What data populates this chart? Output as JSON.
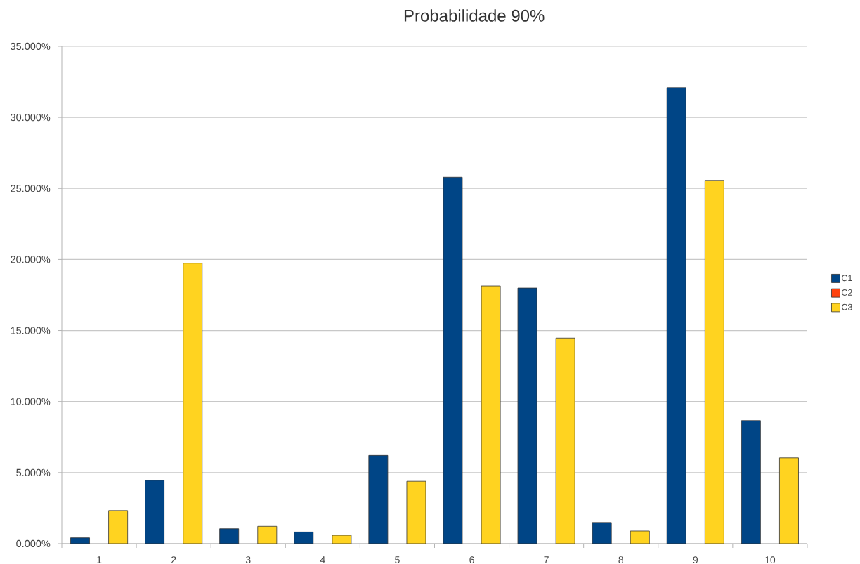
{
  "chart_data": {
    "type": "bar",
    "title": "Probabilidade 90%",
    "categories": [
      "1",
      "2",
      "3",
      "4",
      "5",
      "6",
      "7",
      "8",
      "9",
      "10"
    ],
    "series": [
      {
        "name": "C1",
        "color": "#004586",
        "values": [
          0.41,
          4.46,
          1.05,
          0.82,
          6.21,
          25.79,
          17.99,
          1.49,
          32.09,
          8.66
        ]
      },
      {
        "name": "C2",
        "color": "#ff420e",
        "values": [
          null,
          null,
          null,
          null,
          null,
          null,
          null,
          null,
          null,
          null
        ]
      },
      {
        "name": "C3",
        "color": "#ffd320",
        "values": [
          2.33,
          19.74,
          1.22,
          0.59,
          4.39,
          18.14,
          14.47,
          0.89,
          25.57,
          6.04
        ]
      }
    ],
    "ylim": [
      0,
      35
    ],
    "yticks": [
      {
        "value": 0,
        "label": "0.000%"
      },
      {
        "value": 5,
        "label": "5.000%"
      },
      {
        "value": 10,
        "label": "10.000%"
      },
      {
        "value": 15,
        "label": "15.000%"
      },
      {
        "value": 20,
        "label": "20.000%"
      },
      {
        "value": 25,
        "label": "25.000%"
      },
      {
        "value": 30,
        "label": "30.000%"
      },
      {
        "value": 35,
        "label": "35.000%"
      }
    ],
    "grid": "y",
    "legend": "right"
  }
}
